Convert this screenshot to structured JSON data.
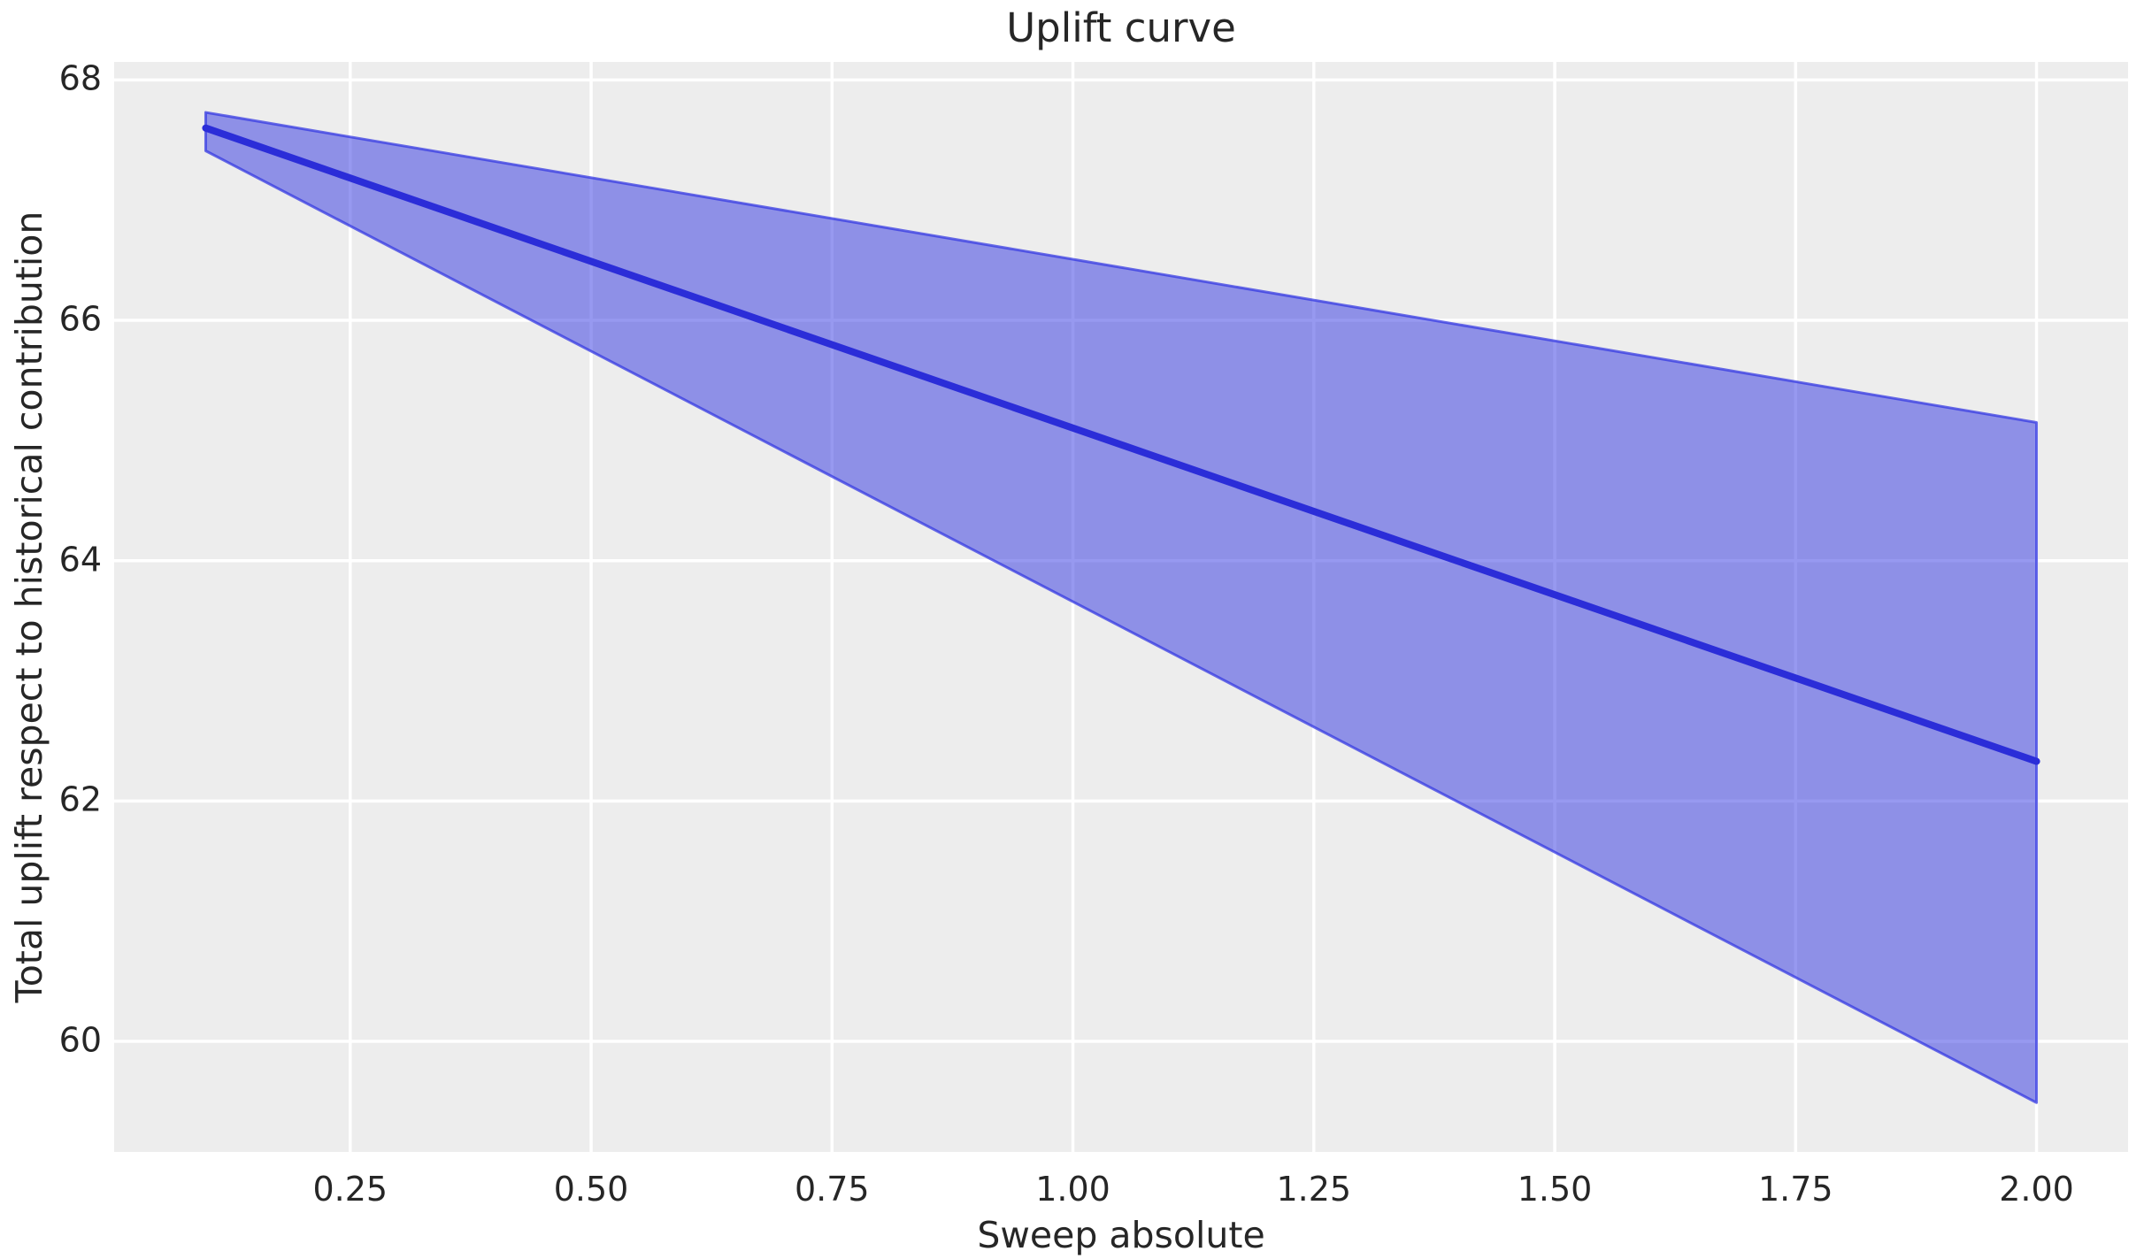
{
  "chart_data": {
    "type": "line",
    "title": "Uplift curve",
    "xlabel": "Sweep absolute",
    "ylabel": "Total uplift respect to historical contribution",
    "xlim": [
      0.005,
      2.095
    ],
    "ylim": [
      59.08,
      68.15
    ],
    "grid": true,
    "legend": false,
    "xticks": {
      "values": [
        0.25,
        0.5,
        0.75,
        1.0,
        1.25,
        1.5,
        1.75,
        2.0
      ],
      "labels": [
        "0.25",
        "0.50",
        "0.75",
        "1.00",
        "1.25",
        "1.50",
        "1.75",
        "2.00"
      ]
    },
    "yticks": {
      "values": [
        60,
        62,
        64,
        66,
        68
      ],
      "labels": [
        "60",
        "62",
        "64",
        "66",
        "68"
      ]
    },
    "series": [
      {
        "name": "mean-uplift-line",
        "type": "line",
        "x": [
          0.1,
          2.0
        ],
        "y": [
          67.6,
          62.33
        ]
      },
      {
        "name": "confidence-band",
        "type": "band",
        "x": [
          0.1,
          2.0
        ],
        "y_upper": [
          67.73,
          65.15
        ],
        "y_lower": [
          67.41,
          59.49
        ]
      }
    ],
    "colors": {
      "line": "#2b2dd8",
      "band_fill": "#3034e2",
      "band_fill_opacity": 0.5,
      "band_edge": "#3034e2",
      "band_edge_opacity": 0.72,
      "plot_background": "#ededed",
      "grid": "#ffffff",
      "text": "#262626",
      "figure_background": "#ffffff"
    }
  }
}
